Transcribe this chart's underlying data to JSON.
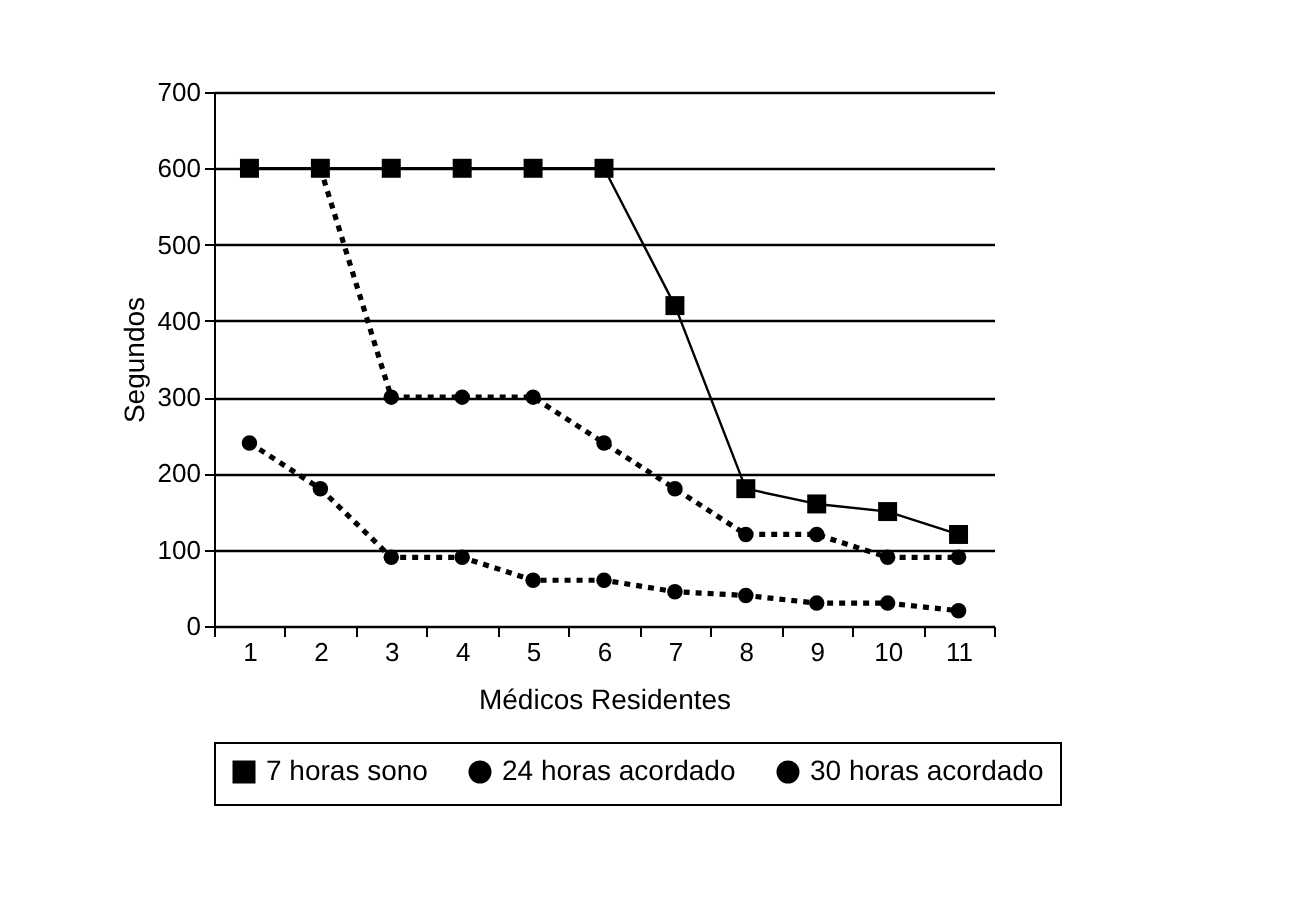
{
  "chart_data": {
    "type": "line",
    "xlabel": "Médicos Residentes",
    "ylabel": "Segundos",
    "categories": [
      "1",
      "2",
      "3",
      "4",
      "5",
      "6",
      "7",
      "8",
      "9",
      "10",
      "11"
    ],
    "series": [
      {
        "name": "7 horas sono",
        "color": "#000000",
        "marker": "square",
        "line_style": "solid",
        "values": [
          600,
          600,
          600,
          600,
          600,
          600,
          420,
          180,
          160,
          150,
          120
        ]
      },
      {
        "name": "24 horas acordado",
        "color": "#000000",
        "marker": "circle",
        "line_style": "dotted",
        "values": [
          null,
          600,
          300,
          300,
          300,
          240,
          180,
          120,
          120,
          90,
          90
        ]
      },
      {
        "name": "30 horas acordado",
        "color": "#000000",
        "marker": "circle",
        "line_style": "dotted",
        "values": [
          240,
          180,
          90,
          90,
          60,
          60,
          45,
          40,
          30,
          30,
          20
        ]
      }
    ],
    "ylim": [
      0,
      700
    ],
    "yticks": [
      0,
      100,
      200,
      300,
      400,
      500,
      600,
      700
    ],
    "grid": "y",
    "legend": "bottom"
  }
}
